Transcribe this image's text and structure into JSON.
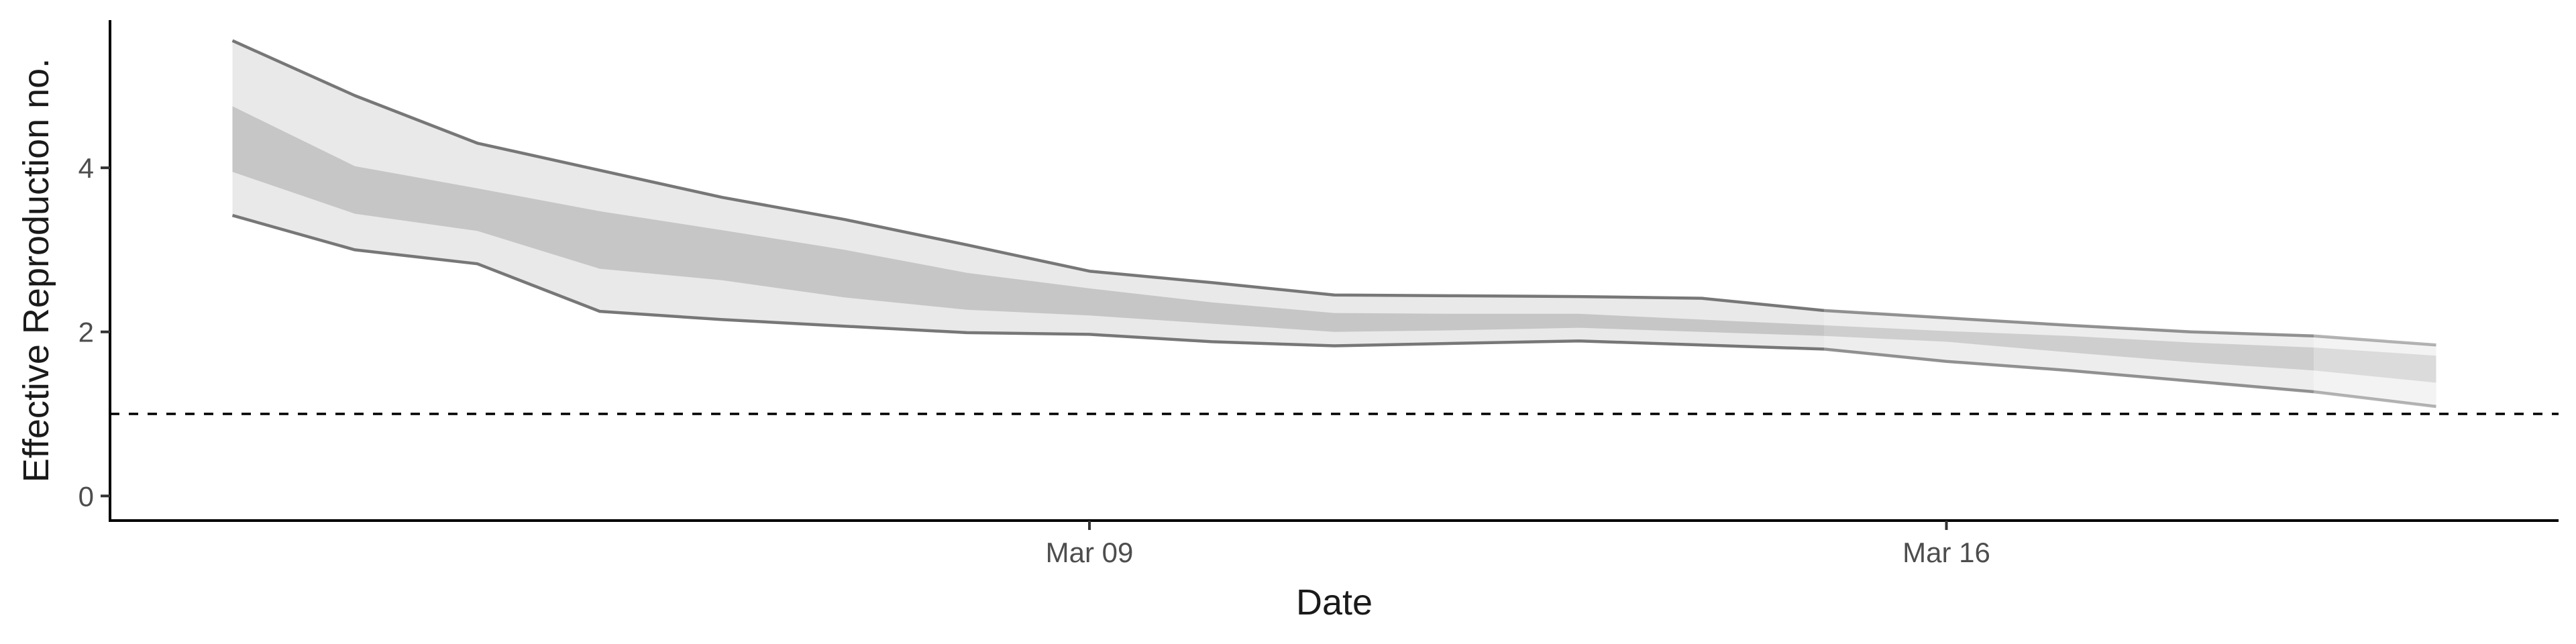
{
  "chart_data": {
    "type": "area",
    "title": "",
    "xlabel": "Date",
    "ylabel": "Effective Reproduction no.",
    "x_axis_type": "date",
    "x": [
      "2020-03-02",
      "2020-03-03",
      "2020-03-04",
      "2020-03-05",
      "2020-03-06",
      "2020-03-07",
      "2020-03-08",
      "2020-03-09",
      "2020-03-10",
      "2020-03-11",
      "2020-03-12",
      "2020-03-13",
      "2020-03-14",
      "2020-03-15",
      "2020-03-16",
      "2020-03-17",
      "2020-03-18",
      "2020-03-19",
      "2020-03-20"
    ],
    "x_tick_values": [
      "2020-03-09",
      "2020-03-16"
    ],
    "x_tick_labels": [
      "Mar 09",
      "Mar 16"
    ],
    "xlim": [
      "2020-03-01",
      "2020-03-21"
    ],
    "y_ticks": [
      0,
      2,
      4
    ],
    "ylim": [
      -0.3,
      5.8
    ],
    "reference_line": {
      "y": 1,
      "style": "dashed"
    },
    "series": [
      {
        "name": "",
        "role": "upper_90",
        "values": [
          5.55,
          4.88,
          4.3,
          3.97,
          3.64,
          3.37,
          3.06,
          2.74,
          2.6,
          2.45,
          2.44,
          2.43,
          2.41,
          2.26,
          2.17,
          2.08,
          2.0,
          1.95,
          1.84
        ]
      },
      {
        "name": "",
        "role": "upper_50",
        "values": [
          4.75,
          4.02,
          3.75,
          3.47,
          3.24,
          3.0,
          2.72,
          2.53,
          2.36,
          2.23,
          2.22,
          2.22,
          2.15,
          2.08,
          2.01,
          1.95,
          1.87,
          1.81,
          1.71
        ]
      },
      {
        "name": "",
        "role": "lower_50",
        "values": [
          3.95,
          3.44,
          3.23,
          2.77,
          2.63,
          2.42,
          2.27,
          2.2,
          2.1,
          2.0,
          2.02,
          2.05,
          2.0,
          1.95,
          1.88,
          1.75,
          1.63,
          1.53,
          1.38
        ]
      },
      {
        "name": "",
        "role": "lower_90",
        "values": [
          3.42,
          3.0,
          2.83,
          2.25,
          2.15,
          2.07,
          1.99,
          1.97,
          1.88,
          1.83,
          1.86,
          1.89,
          1.84,
          1.79,
          1.64,
          1.53,
          1.4,
          1.27,
          1.09
        ]
      }
    ],
    "estimate_type_changes": [
      "2020-03-15",
      "2020-03-19"
    ],
    "grid": false,
    "legend": "none",
    "colors": {
      "band_90": "#e9e9e9",
      "band_50": "#c6c6c6",
      "boundary_line": "#777777",
      "axis": "#000000",
      "reference_line": "#000000"
    }
  }
}
